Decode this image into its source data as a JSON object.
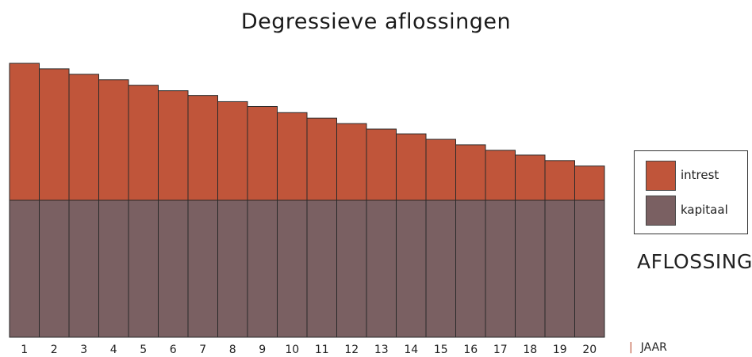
{
  "chart_data": {
    "type": "bar",
    "title": "Degressieve aflossingen",
    "categories": [
      "1",
      "2",
      "3",
      "4",
      "5",
      "6",
      "7",
      "8",
      "9",
      "10",
      "11",
      "12",
      "13",
      "14",
      "15",
      "16",
      "17",
      "18",
      "19",
      "20"
    ],
    "series": [
      {
        "name": "kapitaal",
        "color": "#7a6062",
        "values": [
          100,
          100,
          100,
          100,
          100,
          100,
          100,
          100,
          100,
          100,
          100,
          100,
          100,
          100,
          100,
          100,
          100,
          100,
          100,
          100
        ]
      },
      {
        "name": "intrest",
        "color": "#c0553a",
        "values": [
          100,
          96,
          92,
          88,
          84,
          80,
          76.5,
          72,
          68.5,
          64,
          60,
          56,
          52,
          48.5,
          44.5,
          40.5,
          36.5,
          33,
          29,
          25
        ]
      }
    ],
    "stacked": true,
    "xlabel": "JAAR",
    "ylabel": "AFLOSSING",
    "legend_position": "right",
    "grid": false
  }
}
